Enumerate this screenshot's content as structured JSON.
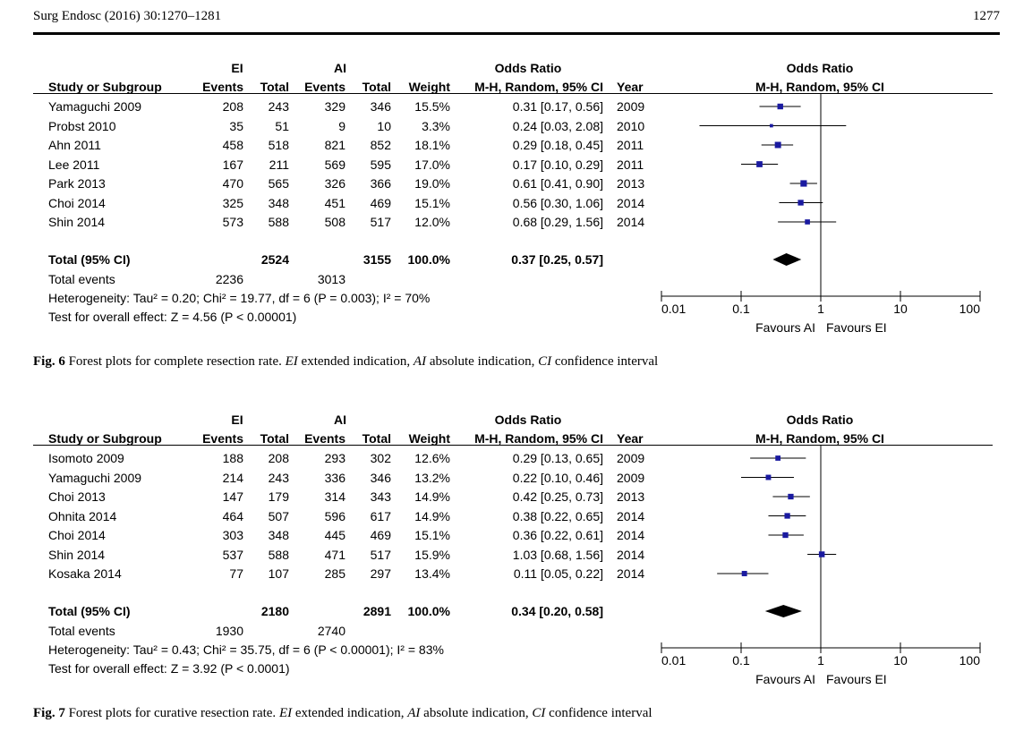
{
  "header": {
    "journal": "Surg Endosc (2016) 30:1270–1281",
    "page": "1277"
  },
  "figures": [
    {
      "group_ei": "EI",
      "group_ai": "AI",
      "or_header": "Odds Ratio",
      "col_study": "Study or Subgroup",
      "col_events": "Events",
      "col_total": "Total",
      "col_weight": "Weight",
      "col_method": "M-H, Random, 95% CI",
      "col_year": "Year",
      "plot_header": "Odds Ratio",
      "plot_method": "M-H, Random, 95% CI",
      "studies": [
        {
          "name": "Yamaguchi 2009",
          "ei_events": "208",
          "ei_total": "243",
          "ai_events": "329",
          "ai_total": "346",
          "weight": "15.5%",
          "or_text": "0.31 [0.17, 0.56]",
          "year": "2009",
          "or": 0.31,
          "lo": 0.17,
          "hi": 0.56,
          "w": 15.5
        },
        {
          "name": "Probst 2010",
          "ei_events": "35",
          "ei_total": "51",
          "ai_events": "9",
          "ai_total": "10",
          "weight": "3.3%",
          "or_text": "0.24 [0.03, 2.08]",
          "year": "2010",
          "or": 0.24,
          "lo": 0.03,
          "hi": 2.08,
          "w": 3.3
        },
        {
          "name": "Ahn 2011",
          "ei_events": "458",
          "ei_total": "518",
          "ai_events": "821",
          "ai_total": "852",
          "weight": "18.1%",
          "or_text": "0.29 [0.18, 0.45]",
          "year": "2011",
          "or": 0.29,
          "lo": 0.18,
          "hi": 0.45,
          "w": 18.1
        },
        {
          "name": "Lee 2011",
          "ei_events": "167",
          "ei_total": "211",
          "ai_events": "569",
          "ai_total": "595",
          "weight": "17.0%",
          "or_text": "0.17 [0.10, 0.29]",
          "year": "2011",
          "or": 0.17,
          "lo": 0.1,
          "hi": 0.29,
          "w": 17.0
        },
        {
          "name": "Park 2013",
          "ei_events": "470",
          "ei_total": "565",
          "ai_events": "326",
          "ai_total": "366",
          "weight": "19.0%",
          "or_text": "0.61 [0.41, 0.90]",
          "year": "2013",
          "or": 0.61,
          "lo": 0.41,
          "hi": 0.9,
          "w": 19.0
        },
        {
          "name": "Choi 2014",
          "ei_events": "325",
          "ei_total": "348",
          "ai_events": "451",
          "ai_total": "469",
          "weight": "15.1%",
          "or_text": "0.56 [0.30, 1.06]",
          "year": "2014",
          "or": 0.56,
          "lo": 0.3,
          "hi": 1.06,
          "w": 15.1
        },
        {
          "name": "Shin 2014",
          "ei_events": "573",
          "ei_total": "588",
          "ai_events": "508",
          "ai_total": "517",
          "weight": "12.0%",
          "or_text": "0.68 [0.29, 1.56]",
          "year": "2014",
          "or": 0.68,
          "lo": 0.29,
          "hi": 1.56,
          "w": 12.0
        }
      ],
      "total": {
        "label": "Total (95% CI)",
        "ei_total": "2524",
        "ai_total": "3155",
        "weight": "100.0%",
        "or_text": "0.37 [0.25, 0.57]",
        "or": 0.37,
        "lo": 0.25,
        "hi": 0.57
      },
      "total_events": {
        "label": "Total events",
        "ei": "2236",
        "ai": "3013"
      },
      "heterogeneity": "Heterogeneity: Tau² = 0.20; Chi² = 19.77, df = 6 (P = 0.003); I² = 70%",
      "overall_effect": "Test for overall effect: Z = 4.56 (P < 0.00001)",
      "axis": {
        "ticks": [
          0.01,
          0.1,
          1,
          10,
          100
        ],
        "tick_labels": [
          "0.01",
          "0.1",
          "1",
          "10",
          "100"
        ],
        "favours_left": "Favours AI",
        "favours_right": "Favours EI"
      },
      "caption": {
        "fig": "Fig. 6",
        "text": "Forest plots for complete resection rate.",
        "ei_abbr": "EI",
        "ei_def": "extended indication,",
        "ai_abbr": "AI",
        "ai_def": "absolute indication,",
        "ci_abbr": "CI",
        "ci_def": "confidence interval"
      }
    },
    {
      "group_ei": "EI",
      "group_ai": "AI",
      "or_header": "Odds Ratio",
      "col_study": "Study or Subgroup",
      "col_events": "Events",
      "col_total": "Total",
      "col_weight": "Weight",
      "col_method": "M-H, Random, 95% CI",
      "col_year": "Year",
      "plot_header": "Odds Ratio",
      "plot_method": "M-H, Random, 95% CI",
      "studies": [
        {
          "name": "Isomoto 2009",
          "ei_events": "188",
          "ei_total": "208",
          "ai_events": "293",
          "ai_total": "302",
          "weight": "12.6%",
          "or_text": "0.29 [0.13, 0.65]",
          "year": "2009",
          "or": 0.29,
          "lo": 0.13,
          "hi": 0.65,
          "w": 12.6
        },
        {
          "name": "Yamaguchi 2009",
          "ei_events": "214",
          "ei_total": "243",
          "ai_events": "336",
          "ai_total": "346",
          "weight": "13.2%",
          "or_text": "0.22 [0.10, 0.46]",
          "year": "2009",
          "or": 0.22,
          "lo": 0.1,
          "hi": 0.46,
          "w": 13.2
        },
        {
          "name": "Choi 2013",
          "ei_events": "147",
          "ei_total": "179",
          "ai_events": "314",
          "ai_total": "343",
          "weight": "14.9%",
          "or_text": "0.42 [0.25, 0.73]",
          "year": "2013",
          "or": 0.42,
          "lo": 0.25,
          "hi": 0.73,
          "w": 14.9
        },
        {
          "name": "Ohnita 2014",
          "ei_events": "464",
          "ei_total": "507",
          "ai_events": "596",
          "ai_total": "617",
          "weight": "14.9%",
          "or_text": "0.38 [0.22, 0.65]",
          "year": "2014",
          "or": 0.38,
          "lo": 0.22,
          "hi": 0.65,
          "w": 14.9
        },
        {
          "name": "Choi 2014",
          "ei_events": "303",
          "ei_total": "348",
          "ai_events": "445",
          "ai_total": "469",
          "weight": "15.1%",
          "or_text": "0.36 [0.22, 0.61]",
          "year": "2014",
          "or": 0.36,
          "lo": 0.22,
          "hi": 0.61,
          "w": 15.1
        },
        {
          "name": "Shin 2014",
          "ei_events": "537",
          "ei_total": "588",
          "ai_events": "471",
          "ai_total": "517",
          "weight": "15.9%",
          "or_text": "1.03 [0.68, 1.56]",
          "year": "2014",
          "or": 1.03,
          "lo": 0.68,
          "hi": 1.56,
          "w": 15.9
        },
        {
          "name": "Kosaka 2014",
          "ei_events": "77",
          "ei_total": "107",
          "ai_events": "285",
          "ai_total": "297",
          "weight": "13.4%",
          "or_text": "0.11 [0.05, 0.22]",
          "year": "2014",
          "or": 0.11,
          "lo": 0.05,
          "hi": 0.22,
          "w": 13.4
        }
      ],
      "total": {
        "label": "Total (95% CI)",
        "ei_total": "2180",
        "ai_total": "2891",
        "weight": "100.0%",
        "or_text": "0.34 [0.20, 0.58]",
        "or": 0.34,
        "lo": 0.2,
        "hi": 0.58
      },
      "total_events": {
        "label": "Total events",
        "ei": "1930",
        "ai": "2740"
      },
      "heterogeneity": "Heterogeneity: Tau² = 0.43; Chi² = 35.75, df = 6 (P < 0.00001); I² = 83%",
      "overall_effect": "Test for overall effect: Z = 3.92 (P < 0.0001)",
      "axis": {
        "ticks": [
          0.01,
          0.1,
          1,
          10,
          100
        ],
        "tick_labels": [
          "0.01",
          "0.1",
          "1",
          "10",
          "100"
        ],
        "favours_left": "Favours AI",
        "favours_right": "Favours EI"
      },
      "caption": {
        "fig": "Fig. 7",
        "text": "Forest plots for curative resection rate.",
        "ei_abbr": "EI",
        "ei_def": "extended indication,",
        "ai_abbr": "AI",
        "ai_def": "absolute indication,",
        "ci_abbr": "CI",
        "ci_def": "confidence interval"
      }
    }
  ]
}
